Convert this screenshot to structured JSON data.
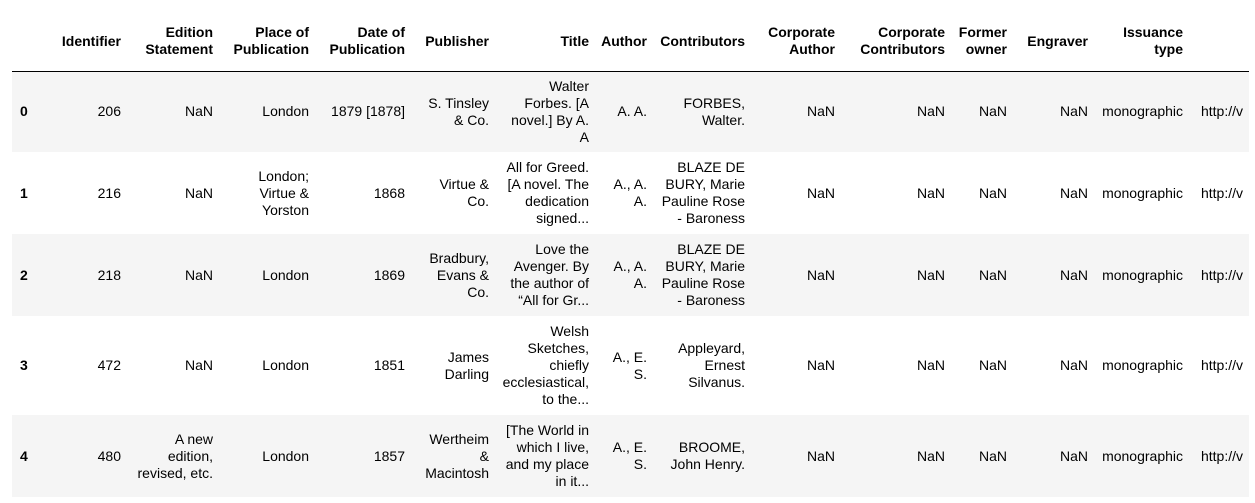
{
  "columns": [
    "",
    "Identifier",
    "Edition Statement",
    "Place of Publication",
    "Date of Publication",
    "Publisher",
    "Title",
    "Author",
    "Contributors",
    "Corporate Author",
    "Corporate Contributors",
    "Former owner",
    "Engraver",
    "Issuance type",
    ""
  ],
  "rows": [
    {
      "index": "0",
      "identifier": "206",
      "edition": "NaN",
      "place": "London",
      "date": "1879 [1878]",
      "publisher": "S. Tinsley & Co.",
      "title": "Walter Forbes. [A novel.] By A. A",
      "author": "A. A.",
      "contributors": "FORBES, Walter.",
      "corp_author": "NaN",
      "corp_contrib": "NaN",
      "former_owner": "NaN",
      "engraver": "NaN",
      "issuance": "monographic",
      "url": "http://v"
    },
    {
      "index": "1",
      "identifier": "216",
      "edition": "NaN",
      "place": "London; Virtue & Yorston",
      "date": "1868",
      "publisher": "Virtue & Co.",
      "title": "All for Greed. [A novel. The dedication signed...",
      "author": "A., A. A.",
      "contributors": "BLAZE DE BURY, Marie Pauline Rose - Baroness",
      "corp_author": "NaN",
      "corp_contrib": "NaN",
      "former_owner": "NaN",
      "engraver": "NaN",
      "issuance": "monographic",
      "url": "http://v"
    },
    {
      "index": "2",
      "identifier": "218",
      "edition": "NaN",
      "place": "London",
      "date": "1869",
      "publisher": "Bradbury, Evans & Co.",
      "title": "Love the Avenger. By the author of “All for Gr...",
      "author": "A., A. A.",
      "contributors": "BLAZE DE BURY, Marie Pauline Rose - Baroness",
      "corp_author": "NaN",
      "corp_contrib": "NaN",
      "former_owner": "NaN",
      "engraver": "NaN",
      "issuance": "monographic",
      "url": "http://v"
    },
    {
      "index": "3",
      "identifier": "472",
      "edition": "NaN",
      "place": "London",
      "date": "1851",
      "publisher": "James Darling",
      "title": "Welsh Sketches, chiefly ecclesiastical, to the...",
      "author": "A., E. S.",
      "contributors": "Appleyard, Ernest Silvanus.",
      "corp_author": "NaN",
      "corp_contrib": "NaN",
      "former_owner": "NaN",
      "engraver": "NaN",
      "issuance": "monographic",
      "url": "http://v"
    },
    {
      "index": "4",
      "identifier": "480",
      "edition": "A new edition, revised, etc.",
      "place": "London",
      "date": "1857",
      "publisher": "Wertheim & Macintosh",
      "title": "[The World in which I live, and my place in it...",
      "author": "A., E. S.",
      "contributors": "BROOME, John Henry.",
      "corp_author": "NaN",
      "corp_contrib": "NaN",
      "former_owner": "NaN",
      "engraver": "NaN",
      "issuance": "monographic",
      "url": "http://v"
    }
  ]
}
